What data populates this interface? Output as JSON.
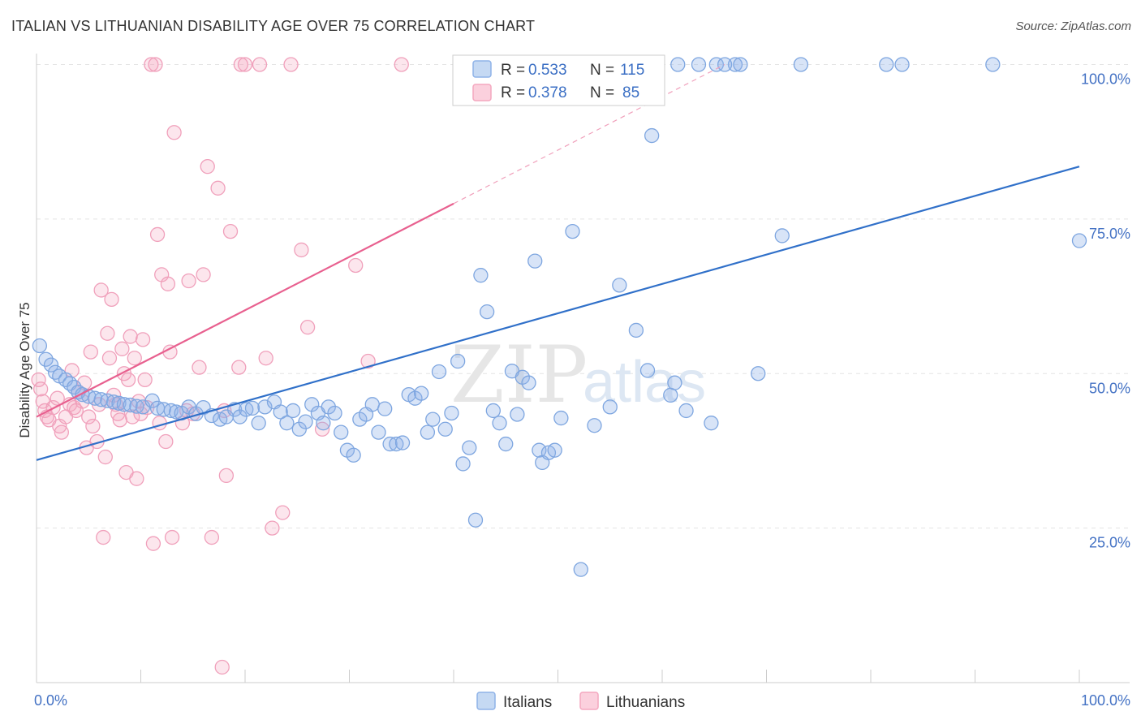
{
  "header": {
    "title": "ITALIAN VS LITHUANIAN DISABILITY AGE OVER 75 CORRELATION CHART",
    "source": "Source: ZipAtlas.com"
  },
  "watermark": {
    "zip": "ZIP",
    "atlas": "atlas"
  },
  "legend_box": {
    "rows": [
      {
        "r_label": "R = ",
        "r_value": "0.533",
        "n_label": "N = ",
        "n_value": "115",
        "color": "#8fb3e8"
      },
      {
        "r_label": "R = ",
        "r_value": "0.378",
        "n_label": "N = ",
        "n_value": "85",
        "color": "#f4a7bf"
      }
    ]
  },
  "bottom_legend": {
    "items": [
      {
        "label": "Italians",
        "color": "#8fb3e8"
      },
      {
        "label": "Lithuanians",
        "color": "#f4a7bf"
      }
    ]
  },
  "chart_data": {
    "type": "scatter",
    "title": "ITALIAN VS LITHUANIAN DISABILITY AGE OVER 75 CORRELATION CHART",
    "xlabel": "",
    "ylabel": "Disability Age Over 75",
    "xlim": [
      0,
      100
    ],
    "ylim": [
      0,
      105
    ],
    "x_tick_labels": [
      "0.0%",
      "100.0%"
    ],
    "y_ticks": [
      25,
      50,
      75,
      100
    ],
    "y_tick_labels": [
      "25.0%",
      "50.0%",
      "75.0%",
      "100.0%"
    ],
    "grid": true,
    "legend_position": "top-center",
    "colors": {
      "italians": "#4f86d9",
      "lithuanians": "#e8759b",
      "italians_line": "#3070c9",
      "lithuanians_line": "#e8608f"
    },
    "series": [
      {
        "name": "Italians",
        "r": 0.533,
        "n": 115,
        "trend": {
          "x0": 0,
          "y0": 36.0,
          "x1": 100,
          "y1": 83.5
        },
        "points": [
          [
            0.3,
            54.5
          ],
          [
            0.9,
            52.3
          ],
          [
            1.4,
            51.4
          ],
          [
            1.8,
            50.2
          ],
          [
            2.2,
            49.6
          ],
          [
            2.8,
            49.0
          ],
          [
            3.2,
            48.4
          ],
          [
            3.6,
            47.8
          ],
          [
            4.0,
            47.0
          ],
          [
            4.4,
            46.6
          ],
          [
            5.0,
            46.3
          ],
          [
            5.6,
            46.0
          ],
          [
            6.2,
            45.8
          ],
          [
            6.8,
            45.6
          ],
          [
            7.4,
            45.4
          ],
          [
            7.9,
            45.2
          ],
          [
            8.4,
            45.0
          ],
          [
            9.0,
            44.9
          ],
          [
            9.6,
            44.7
          ],
          [
            10.2,
            44.6
          ],
          [
            11.1,
            45.6
          ],
          [
            11.6,
            44.4
          ],
          [
            12.2,
            44.2
          ],
          [
            12.9,
            44.0
          ],
          [
            13.4,
            43.8
          ],
          [
            13.9,
            43.6
          ],
          [
            14.6,
            44.6
          ],
          [
            15.3,
            43.5
          ],
          [
            16.0,
            44.5
          ],
          [
            16.8,
            43.2
          ],
          [
            17.6,
            42.6
          ],
          [
            18.2,
            43.0
          ],
          [
            19.0,
            44.2
          ],
          [
            19.5,
            43.0
          ],
          [
            20.1,
            44.2
          ],
          [
            20.7,
            44.4
          ],
          [
            21.3,
            42.0
          ],
          [
            21.9,
            44.6
          ],
          [
            22.8,
            45.4
          ],
          [
            23.4,
            43.8
          ],
          [
            24.0,
            42.0
          ],
          [
            24.6,
            44.0
          ],
          [
            25.2,
            41.0
          ],
          [
            25.8,
            42.2
          ],
          [
            26.4,
            45.0
          ],
          [
            27.0,
            43.6
          ],
          [
            27.5,
            42.0
          ],
          [
            28.0,
            44.6
          ],
          [
            28.6,
            43.6
          ],
          [
            29.2,
            40.5
          ],
          [
            29.8,
            37.6
          ],
          [
            30.4,
            36.8
          ],
          [
            31.0,
            42.6
          ],
          [
            31.6,
            43.4
          ],
          [
            32.2,
            45.0
          ],
          [
            32.8,
            40.5
          ],
          [
            33.4,
            44.3
          ],
          [
            33.9,
            38.6
          ],
          [
            34.5,
            38.6
          ],
          [
            35.1,
            38.8
          ],
          [
            35.7,
            46.6
          ],
          [
            36.3,
            46.0
          ],
          [
            36.9,
            46.8
          ],
          [
            37.5,
            40.5
          ],
          [
            38.0,
            42.6
          ],
          [
            38.6,
            50.3
          ],
          [
            39.2,
            41.0
          ],
          [
            39.8,
            43.6
          ],
          [
            40.4,
            52.0
          ],
          [
            40.9,
            35.4
          ],
          [
            41.5,
            38.0
          ],
          [
            42.1,
            26.3
          ],
          [
            42.6,
            65.9
          ],
          [
            43.2,
            60.0
          ],
          [
            43.8,
            44.0
          ],
          [
            44.4,
            42.0
          ],
          [
            45.0,
            38.6
          ],
          [
            45.6,
            50.4
          ],
          [
            46.1,
            43.4
          ],
          [
            46.6,
            49.4
          ],
          [
            47.2,
            48.5
          ],
          [
            47.8,
            68.2
          ],
          [
            48.2,
            37.6
          ],
          [
            48.5,
            35.6
          ],
          [
            49.1,
            37.2
          ],
          [
            49.7,
            37.6
          ],
          [
            50.3,
            42.8
          ],
          [
            51.4,
            73.0
          ],
          [
            52.2,
            18.3
          ],
          [
            53.5,
            41.6
          ],
          [
            55.0,
            44.6
          ],
          [
            55.9,
            64.3
          ],
          [
            57.5,
            57.0
          ],
          [
            59.0,
            88.5
          ],
          [
            61.5,
            100.0
          ],
          [
            63.5,
            100.0
          ],
          [
            65.2,
            100.0
          ],
          [
            67.0,
            100.0
          ],
          [
            67.5,
            100.0
          ],
          [
            66.0,
            100.0
          ],
          [
            64.7,
            42.0
          ],
          [
            62.3,
            44.0
          ],
          [
            60.8,
            46.5
          ],
          [
            58.6,
            50.5
          ],
          [
            61.2,
            48.5
          ],
          [
            69.2,
            50.0
          ],
          [
            71.5,
            72.3
          ],
          [
            73.3,
            100.0
          ],
          [
            81.5,
            100.0
          ],
          [
            83.0,
            100.0
          ],
          [
            91.7,
            100.0
          ],
          [
            100.0,
            71.5
          ],
          [
            46.0,
            100.0
          ],
          [
            55.3,
            100.0
          ],
          [
            57.8,
            100.0
          ]
        ]
      },
      {
        "name": "Lithuanians",
        "r": 0.378,
        "n": 85,
        "trend": {
          "x0": 0,
          "y0": 43.0,
          "x1": 40,
          "y1": 77.5
        },
        "trend_dashed": {
          "x0": 40,
          "y0": 77.5,
          "x1": 66,
          "y1": 100.0
        },
        "points": [
          [
            0.2,
            49.0
          ],
          [
            0.4,
            47.5
          ],
          [
            0.6,
            45.5
          ],
          [
            0.8,
            44.0
          ],
          [
            1.0,
            43.0
          ],
          [
            1.2,
            42.5
          ],
          [
            1.6,
            44.5
          ],
          [
            2.0,
            46.0
          ],
          [
            2.2,
            41.5
          ],
          [
            2.4,
            40.5
          ],
          [
            2.8,
            43.0
          ],
          [
            3.2,
            45.0
          ],
          [
            3.4,
            50.5
          ],
          [
            3.6,
            44.5
          ],
          [
            4.0,
            47.0
          ],
          [
            4.4,
            45.5
          ],
          [
            4.6,
            48.5
          ],
          [
            4.8,
            38.0
          ],
          [
            5.0,
            43.0
          ],
          [
            5.2,
            53.5
          ],
          [
            5.4,
            41.5
          ],
          [
            5.8,
            39.0
          ],
          [
            6.0,
            45.0
          ],
          [
            6.2,
            63.5
          ],
          [
            6.4,
            23.5
          ],
          [
            6.6,
            36.5
          ],
          [
            6.8,
            56.5
          ],
          [
            7.0,
            52.5
          ],
          [
            7.2,
            62.0
          ],
          [
            7.4,
            46.5
          ],
          [
            7.6,
            45.0
          ],
          [
            7.8,
            43.5
          ],
          [
            8.0,
            42.5
          ],
          [
            8.2,
            54.0
          ],
          [
            8.4,
            50.0
          ],
          [
            8.6,
            34.0
          ],
          [
            8.8,
            49.0
          ],
          [
            9.0,
            56.0
          ],
          [
            9.2,
            43.0
          ],
          [
            9.4,
            52.5
          ],
          [
            9.6,
            33.0
          ],
          [
            9.8,
            45.5
          ],
          [
            10.0,
            43.5
          ],
          [
            10.2,
            55.5
          ],
          [
            10.4,
            49.0
          ],
          [
            10.6,
            44.5
          ],
          [
            11.0,
            100.0
          ],
          [
            11.2,
            22.5
          ],
          [
            11.4,
            100.0
          ],
          [
            11.6,
            72.5
          ],
          [
            11.8,
            42.0
          ],
          [
            12.0,
            66.0
          ],
          [
            12.4,
            39.0
          ],
          [
            12.6,
            64.5
          ],
          [
            12.8,
            53.5
          ],
          [
            13.0,
            23.5
          ],
          [
            13.2,
            89.0
          ],
          [
            14.0,
            42.0
          ],
          [
            14.4,
            44.0
          ],
          [
            14.6,
            65.0
          ],
          [
            15.0,
            43.5
          ],
          [
            15.6,
            51.0
          ],
          [
            16.0,
            66.0
          ],
          [
            16.4,
            83.5
          ],
          [
            16.8,
            23.5
          ],
          [
            17.4,
            80.0
          ],
          [
            17.8,
            2.5
          ],
          [
            18.0,
            44.0
          ],
          [
            18.2,
            33.5
          ],
          [
            18.6,
            73.0
          ],
          [
            19.4,
            51.0
          ],
          [
            19.6,
            100.0
          ],
          [
            20.0,
            100.0
          ],
          [
            21.4,
            100.0
          ],
          [
            22.0,
            52.5
          ],
          [
            22.6,
            25.0
          ],
          [
            23.6,
            27.5
          ],
          [
            24.4,
            100.0
          ],
          [
            25.4,
            70.0
          ],
          [
            26.0,
            57.5
          ],
          [
            27.4,
            41.0
          ],
          [
            30.6,
            67.5
          ],
          [
            31.8,
            52.0
          ],
          [
            35.0,
            100.0
          ],
          [
            3.8,
            44.0
          ]
        ]
      }
    ]
  }
}
